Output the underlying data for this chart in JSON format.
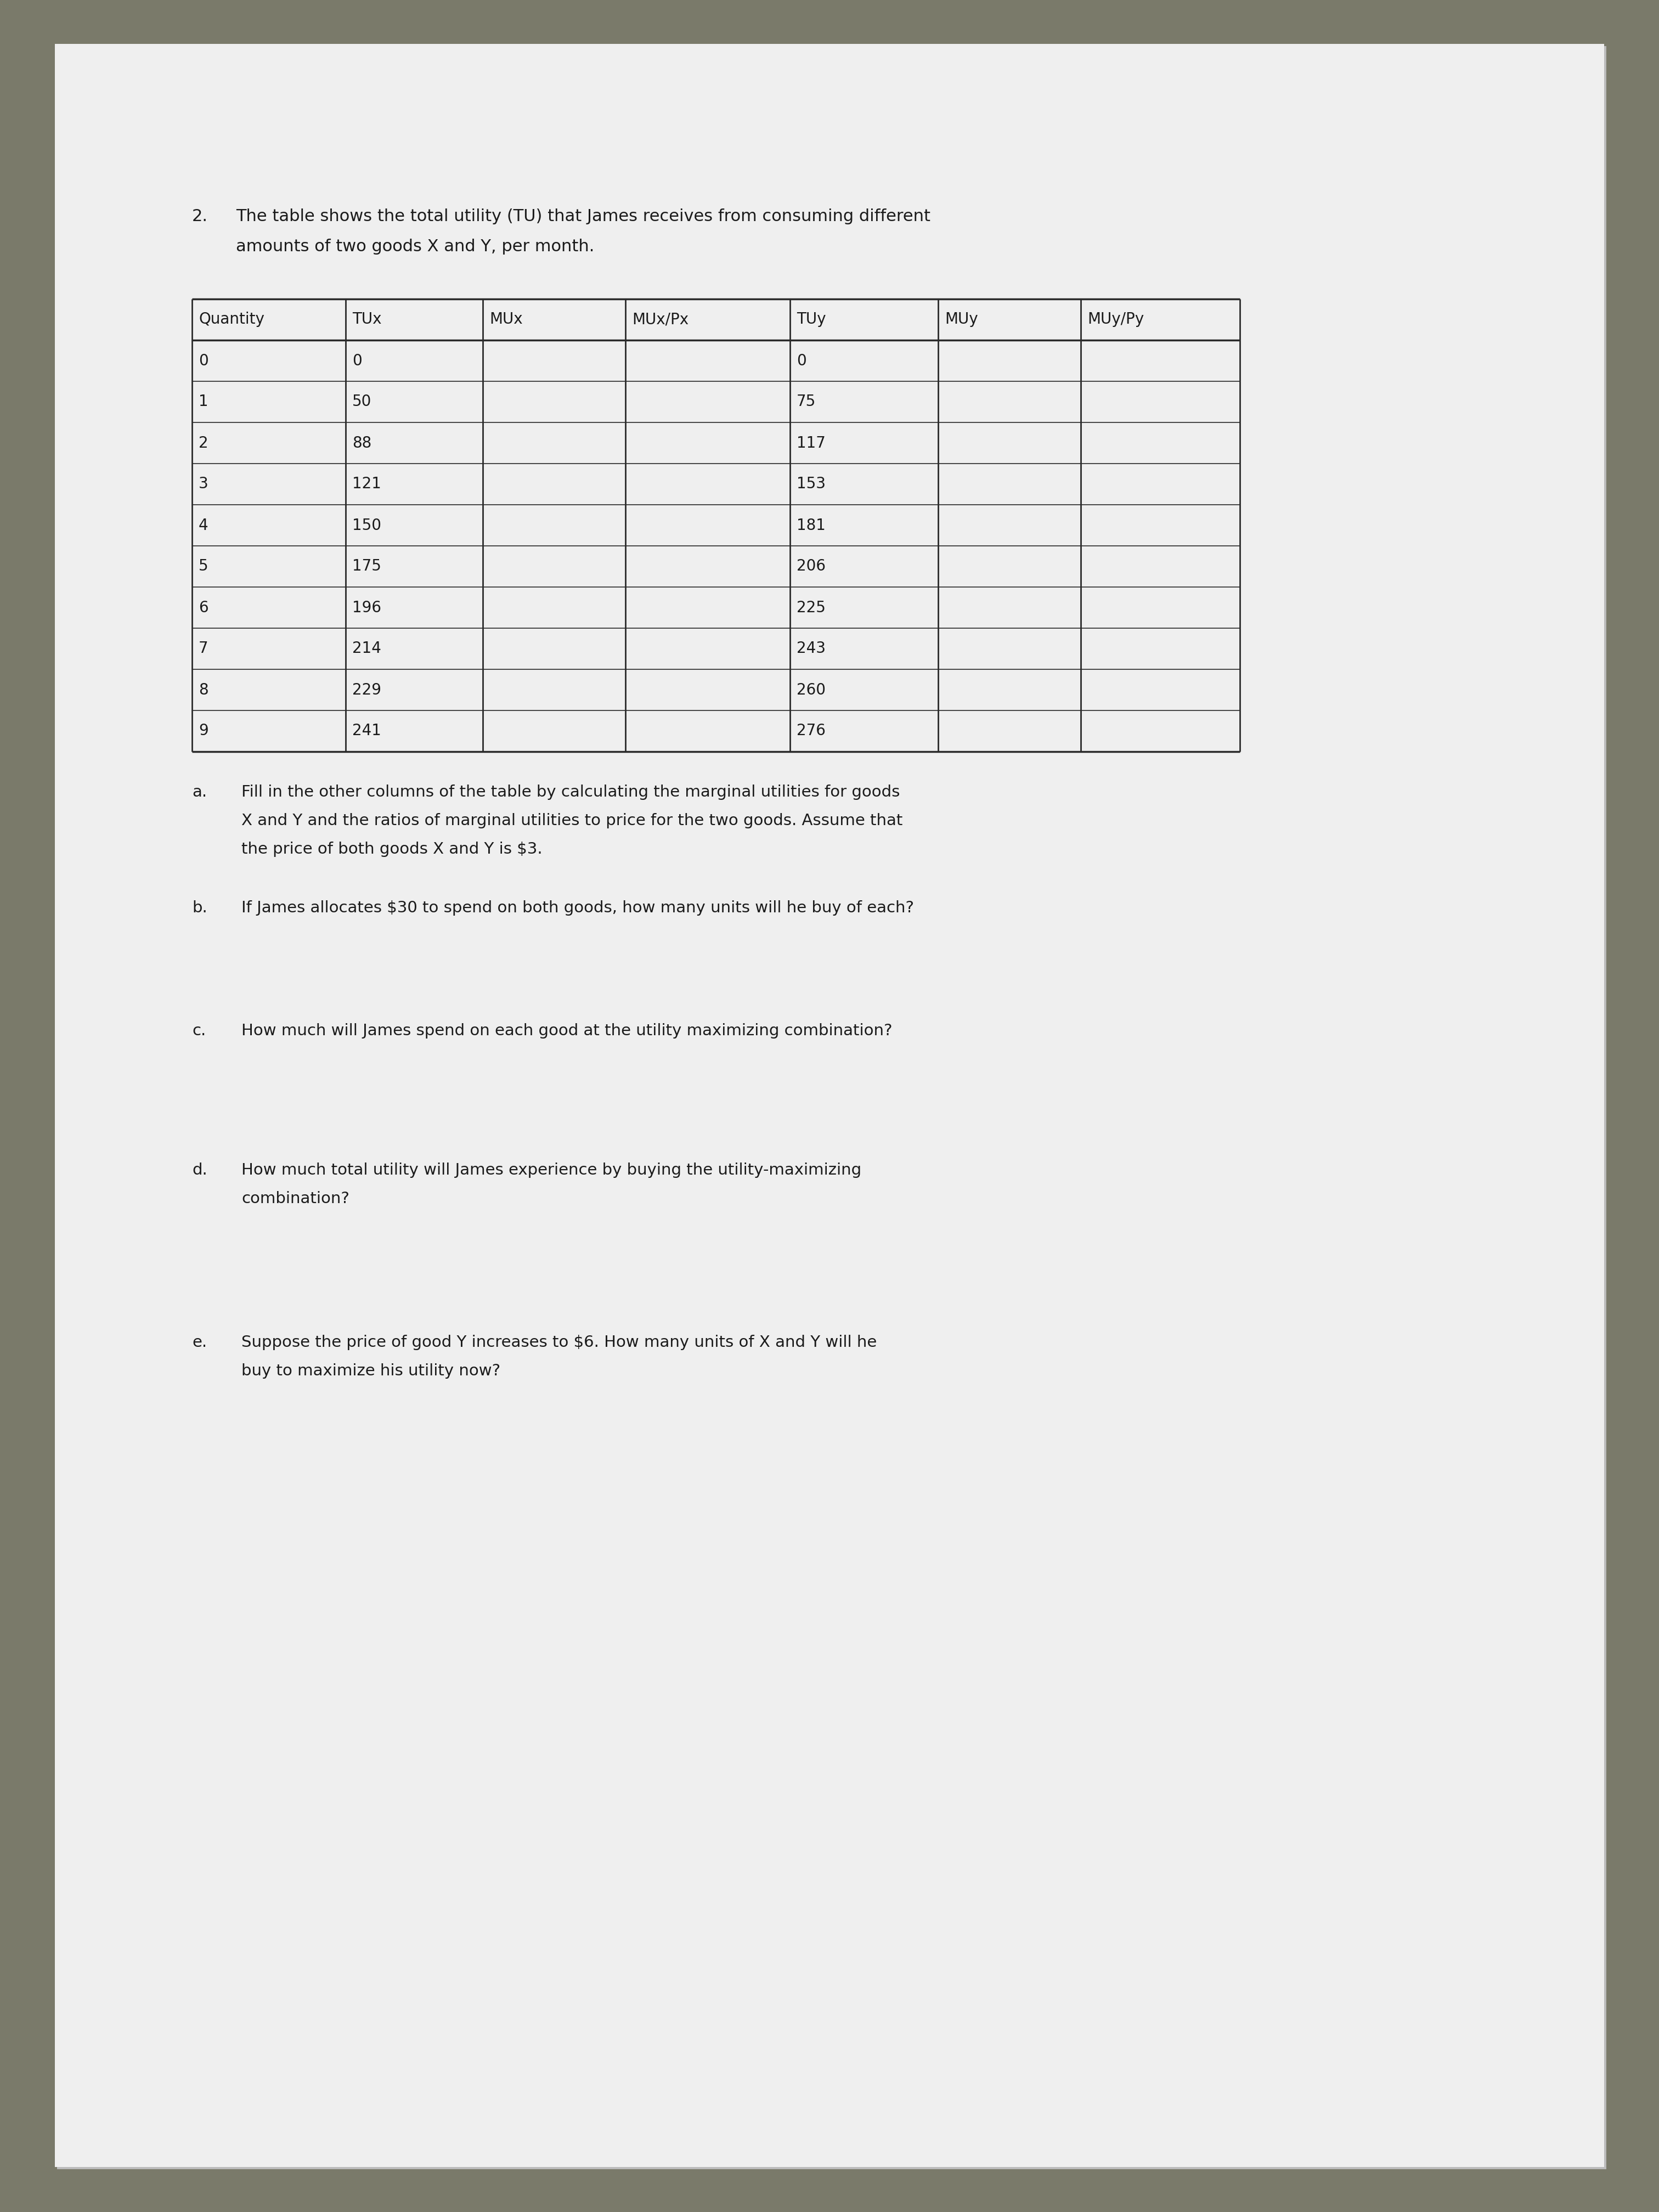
{
  "bg_color": "#7a7a6a",
  "paper_color": "#efefef",
  "paper_shadow": "#d0d0d0",
  "question_number": "2.",
  "intro_line1": "The table shows the total utility (TU) that James receives from consuming different",
  "intro_line2": "amounts of two goods X and Y, per month.",
  "table_headers": [
    "Quantity",
    "TUx",
    "MUx",
    "MUx/Px",
    "TUy",
    "MUy",
    "MUy/Py"
  ],
  "table_rows": [
    [
      "0",
      "0",
      "",
      "",
      "0",
      "",
      ""
    ],
    [
      "1",
      "50",
      "",
      "",
      "75",
      "",
      ""
    ],
    [
      "2",
      "88",
      "",
      "",
      "117",
      "",
      ""
    ],
    [
      "3",
      "121",
      "",
      "",
      "153",
      "",
      ""
    ],
    [
      "4",
      "150",
      "",
      "",
      "181",
      "",
      ""
    ],
    [
      "5",
      "175",
      "",
      "",
      "206",
      "",
      ""
    ],
    [
      "6",
      "196",
      "",
      "",
      "225",
      "",
      ""
    ],
    [
      "7",
      "214",
      "",
      "",
      "243",
      "",
      ""
    ],
    [
      "8",
      "229",
      "",
      "",
      "260",
      "",
      ""
    ],
    [
      "9",
      "241",
      "",
      "",
      "276",
      "",
      ""
    ]
  ],
  "questions": [
    {
      "letter": "a.",
      "line1": "Fill in the other columns of the table by calculating the marginal utilities for goods",
      "line2": "X and Y and the ratios of marginal utilities to price for the two goods. Assume that",
      "line3": "the price of both goods X and Y is $3."
    },
    {
      "letter": "b.",
      "line1": "If James allocates $30 to spend on both goods, how many units will he buy of each?",
      "line2": "",
      "line3": ""
    },
    {
      "letter": "c.",
      "line1": "How much will James spend on each good at the utility maximizing combination?",
      "line2": "",
      "line3": ""
    },
    {
      "letter": "d.",
      "line1": "How much total utility will James experience by buying the utility-maximizing",
      "line2": "combination?",
      "line3": ""
    },
    {
      "letter": "e.",
      "line1": "Suppose the price of good Y increases to $6. How many units of X and Y will he",
      "line2": "buy to maximize his utility now?",
      "line3": ""
    }
  ],
  "text_color": "#1a1a1a",
  "table_line_color": "#2a2a2a"
}
